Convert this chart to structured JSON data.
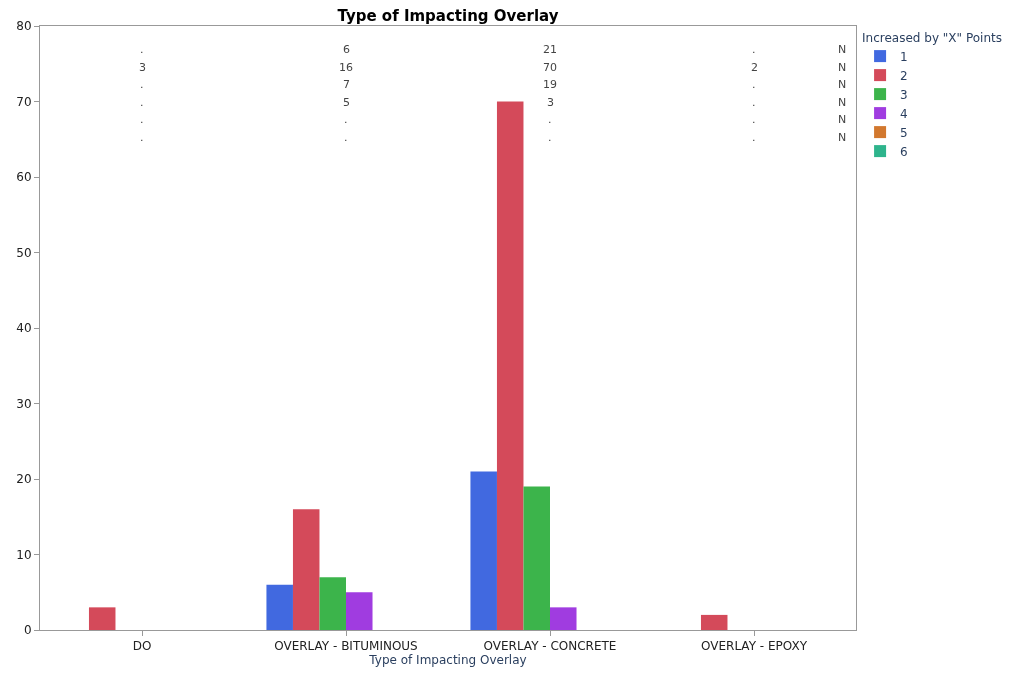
{
  "chart_data": {
    "type": "bar",
    "title": "Type of Impacting Overlay",
    "xlabel": "Type of Impacting Overlay",
    "categories": [
      "DO",
      "OVERLAY - BITUMINOUS",
      "OVERLAY - CONCRETE",
      "OVERLAY - EPOXY"
    ],
    "series": [
      {
        "name": "1",
        "color": "#4169e0",
        "values": [
          null,
          6,
          21,
          null
        ]
      },
      {
        "name": "2",
        "color": "#d44a5a",
        "values": [
          3,
          16,
          70,
          2
        ]
      },
      {
        "name": "3",
        "color": "#3cb44b",
        "values": [
          null,
          7,
          19,
          null
        ]
      },
      {
        "name": "4",
        "color": "#a03ce0",
        "values": [
          null,
          5,
          3,
          null
        ]
      },
      {
        "name": "5",
        "color": "#d2782e",
        "values": [
          null,
          null,
          null,
          null
        ]
      },
      {
        "name": "6",
        "color": "#2eb48c",
        "values": [
          null,
          null,
          null,
          null
        ]
      }
    ],
    "annotations": [
      ".",
      "6",
      "21",
      ".",
      "N",
      "3",
      "16",
      "70",
      "2",
      "N",
      ".",
      "7",
      "19",
      ".",
      "N",
      ".",
      "5",
      "3",
      ".",
      "N",
      ".",
      ".",
      ".",
      ".",
      "N",
      ".",
      ".",
      ".",
      ".",
      "N"
    ],
    "legend_title": "Increased by \"X\" Points",
    "legend": "top right",
    "ylim": [
      0,
      80
    ],
    "yticks": [
      0,
      10,
      20,
      30,
      40,
      50,
      60,
      70,
      80
    ]
  }
}
